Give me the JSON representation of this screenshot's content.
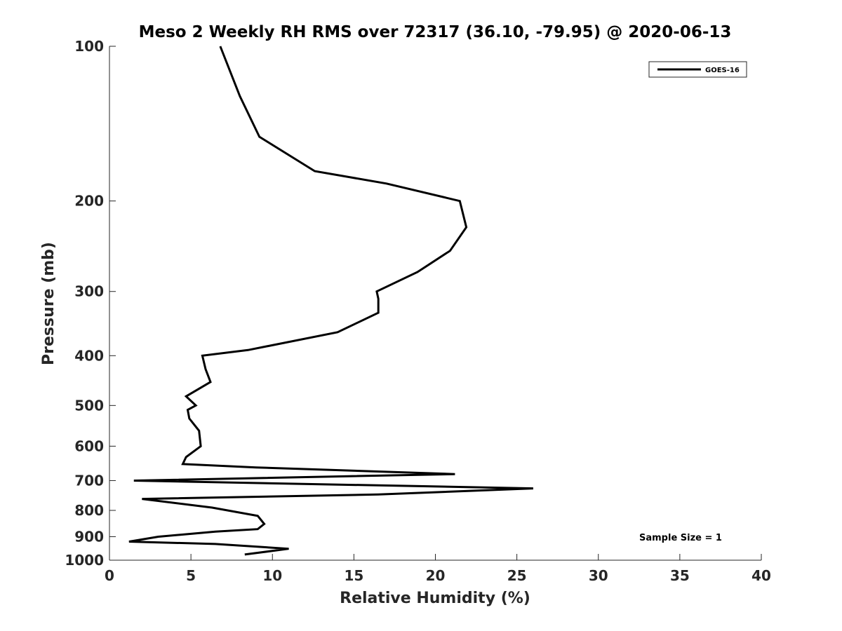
{
  "chart_data": {
    "type": "line",
    "title": "Meso 2 Weekly RH RMS over 72317 (36.10, -79.95) @ 2020-06-13",
    "xlabel": "Relative Humidity (%)",
    "ylabel": "Pressure (mb)",
    "xlim": [
      0,
      40
    ],
    "ylim": [
      100,
      1000
    ],
    "y_scale": "log",
    "y_reversed": true,
    "x_ticks": [
      0,
      5,
      10,
      15,
      20,
      25,
      30,
      35,
      40
    ],
    "y_ticks": [
      100,
      200,
      300,
      400,
      500,
      600,
      700,
      800,
      900,
      1000
    ],
    "grid": false,
    "legend_position": "top-right",
    "annotation": "Sample Size = 1",
    "series": [
      {
        "name": "GOES-16",
        "color": "#000000",
        "points": [
          [
            6.8,
            100
          ],
          [
            8.0,
            125
          ],
          [
            9.2,
            150
          ],
          [
            12.6,
            175
          ],
          [
            17.0,
            185
          ],
          [
            21.5,
            200
          ],
          [
            21.9,
            225
          ],
          [
            20.9,
            250
          ],
          [
            18.9,
            275
          ],
          [
            16.4,
            300
          ],
          [
            16.5,
            310
          ],
          [
            16.5,
            330
          ],
          [
            14.0,
            360
          ],
          [
            8.5,
            390
          ],
          [
            5.7,
            400
          ],
          [
            5.9,
            425
          ],
          [
            6.2,
            450
          ],
          [
            4.7,
            480
          ],
          [
            5.3,
            500
          ],
          [
            4.8,
            510
          ],
          [
            4.9,
            530
          ],
          [
            5.5,
            560
          ],
          [
            5.6,
            600
          ],
          [
            4.7,
            630
          ],
          [
            4.5,
            650
          ],
          [
            9.0,
            660
          ],
          [
            21.2,
            680
          ],
          [
            1.5,
            700
          ],
          [
            26.0,
            725
          ],
          [
            16.5,
            745
          ],
          [
            2.0,
            760
          ],
          [
            6.3,
            790
          ],
          [
            9.1,
            820
          ],
          [
            9.5,
            850
          ],
          [
            9.1,
            870
          ],
          [
            6.5,
            880
          ],
          [
            3.0,
            900
          ],
          [
            1.2,
            920
          ],
          [
            6.5,
            930
          ],
          [
            11.0,
            950
          ],
          [
            8.3,
            975
          ]
        ]
      }
    ]
  }
}
